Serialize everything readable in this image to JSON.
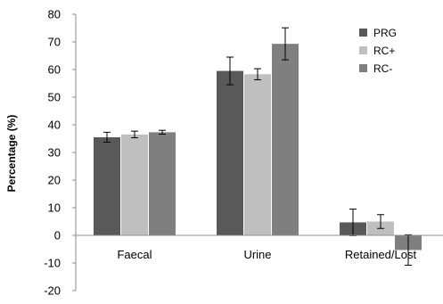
{
  "chart_data": {
    "type": "bar",
    "title": "",
    "xlabel": "",
    "ylabel": "Percentage (%)",
    "ylim": [
      -20,
      80
    ],
    "yticks": [
      -20,
      -10,
      0,
      10,
      20,
      30,
      40,
      50,
      60,
      70,
      80
    ],
    "ytick_labels": [
      "-20",
      "-10",
      "0",
      "10",
      "20",
      "30",
      "40",
      "50",
      "60",
      "70",
      "80"
    ],
    "categories": [
      "Faecal",
      "Urine",
      "Retained/Lost"
    ],
    "grid": false,
    "legend_position": "top-right",
    "error_bars": true,
    "series": [
      {
        "name": "PRG",
        "color": "#595959",
        "values": [
          35.5,
          59.5,
          4.7
        ],
        "errors": [
          1.8,
          5.0,
          4.8
        ]
      },
      {
        "name": "RC+",
        "color": "#bfbfbf",
        "values": [
          36.5,
          58.3,
          5.0
        ],
        "errors": [
          1.2,
          2.0,
          2.5
        ]
      },
      {
        "name": "RC-",
        "color": "#7f7f7f",
        "values": [
          37.3,
          69.3,
          -5.3
        ],
        "errors": [
          0.7,
          5.8,
          5.5
        ]
      }
    ]
  }
}
